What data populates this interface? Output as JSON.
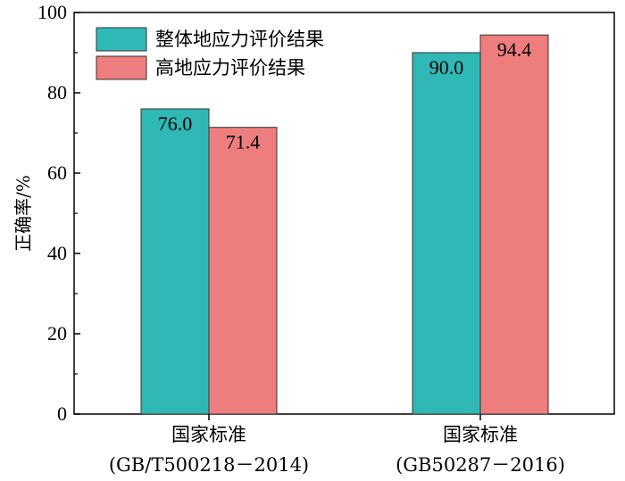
{
  "chart_data": {
    "type": "bar",
    "categories": [
      [
        "国家标准",
        "(GB/T500218－2014)"
      ],
      [
        "国家标准",
        "(GB50287－2016)"
      ]
    ],
    "series": [
      {
        "name": "整体地应力评价结果",
        "values": [
          76.0,
          90.0
        ],
        "color": "#2fb8b6"
      },
      {
        "name": "高地应力评价结果",
        "values": [
          71.4,
          94.4
        ],
        "color": "#ee7e7e"
      }
    ],
    "ylabel": "正确率/%",
    "xlabel": "",
    "ylim": [
      0,
      100
    ],
    "yticks": [
      0,
      20,
      40,
      60,
      80,
      100
    ],
    "legend": "top-left",
    "grid": false
  }
}
